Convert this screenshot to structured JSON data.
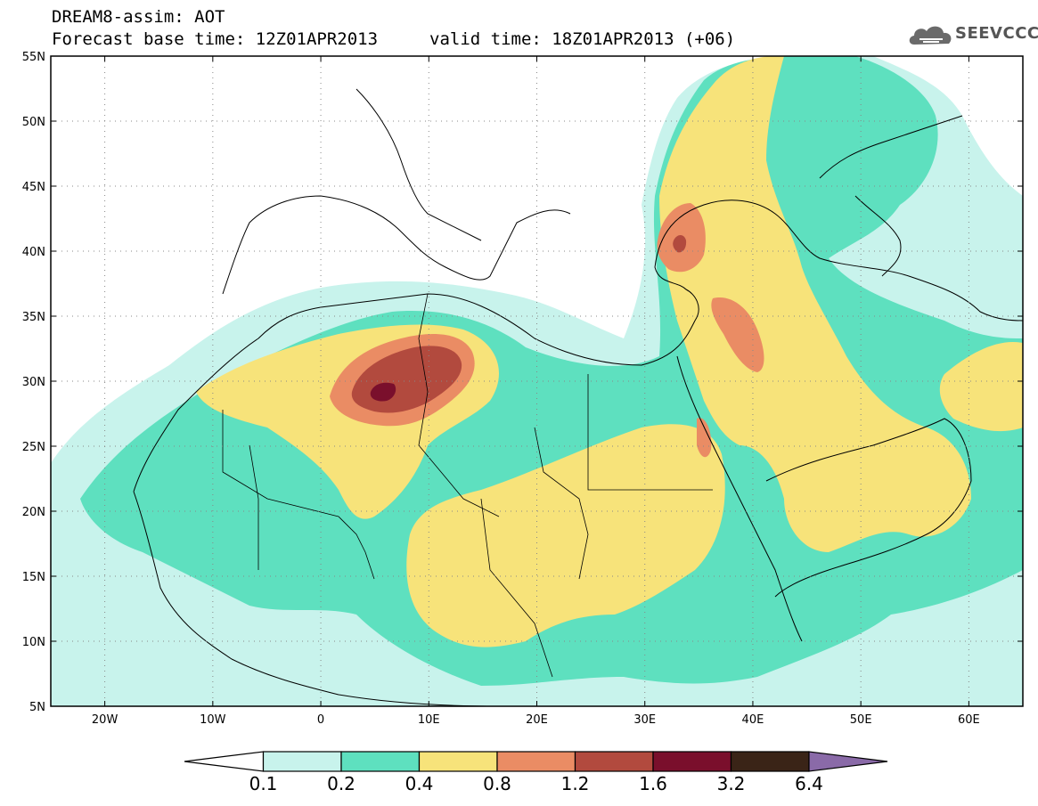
{
  "header": {
    "title": "DREAM8-assim: AOT",
    "base_time": "Forecast base time: 12Z01APR2013",
    "valid_time": "valid time: 18Z01APR2013 (+06)",
    "logo_text": "SEEVCCC",
    "logo_icon": "cloud-icon"
  },
  "map": {
    "field": "AOT",
    "lon_range": [
      -25,
      65
    ],
    "lat_range": [
      5,
      55
    ],
    "lon_ticks": [
      {
        "value": -20,
        "label": "20W"
      },
      {
        "value": -10,
        "label": "10W"
      },
      {
        "value": 0,
        "label": "0"
      },
      {
        "value": 10,
        "label": "10E"
      },
      {
        "value": 20,
        "label": "20E"
      },
      {
        "value": 30,
        "label": "30E"
      },
      {
        "value": 40,
        "label": "40E"
      },
      {
        "value": 50,
        "label": "50E"
      },
      {
        "value": 60,
        "label": "60E"
      }
    ],
    "lat_ticks": [
      {
        "value": 55,
        "label": "55N"
      },
      {
        "value": 50,
        "label": "50N"
      },
      {
        "value": 45,
        "label": "45N"
      },
      {
        "value": 40,
        "label": "40N"
      },
      {
        "value": 35,
        "label": "35N"
      },
      {
        "value": 30,
        "label": "30N"
      },
      {
        "value": 25,
        "label": "25N"
      },
      {
        "value": 20,
        "label": "20N"
      },
      {
        "value": 15,
        "label": "15N"
      },
      {
        "value": 10,
        "label": "10N"
      },
      {
        "value": 5,
        "label": "5N"
      }
    ],
    "grid": true
  },
  "colorbar": {
    "levels": [
      "0.1",
      "0.2",
      "0.4",
      "0.8",
      "1.2",
      "1.6",
      "3.2",
      "6.4"
    ],
    "colors": [
      "#c8f3ec",
      "#5ee0bf",
      "#f7e37a",
      "#ea8c64",
      "#b24a3e",
      "#7a0f2c",
      "#3a2417",
      "#8a6aa8"
    ],
    "under_color": "#ffffff",
    "over_color": "#8a6aa8"
  }
}
